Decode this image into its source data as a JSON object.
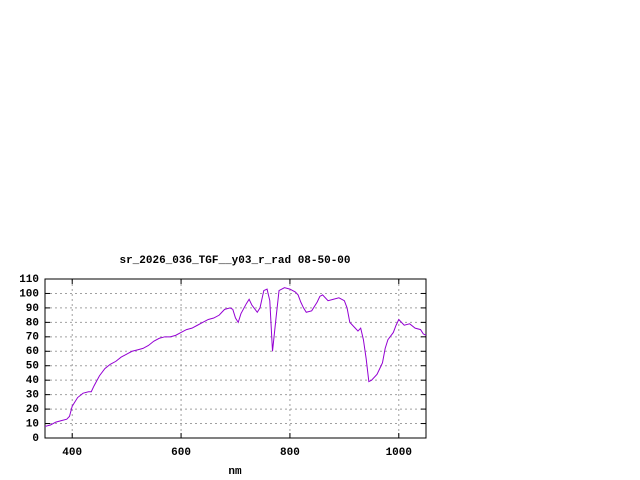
{
  "chart_data": {
    "type": "line",
    "title": "sr_2026_036_TGF__y03_r_rad 08-50-00",
    "x_label": "nm",
    "x": [
      350,
      360,
      370,
      380,
      390,
      395,
      400,
      410,
      420,
      430,
      435,
      440,
      450,
      460,
      470,
      480,
      490,
      500,
      510,
      520,
      530,
      540,
      550,
      560,
      570,
      580,
      590,
      600,
      610,
      620,
      630,
      640,
      650,
      660,
      670,
      680,
      690,
      695,
      700,
      705,
      710,
      720,
      725,
      730,
      740,
      745,
      752,
      758,
      763,
      768,
      775,
      780,
      790,
      800,
      810,
      815,
      820,
      825,
      830,
      840,
      850,
      855,
      860,
      870,
      880,
      890,
      900,
      905,
      910,
      920,
      925,
      930,
      935,
      940,
      945,
      950,
      960,
      965,
      970,
      975,
      980,
      990,
      995,
      1000,
      1005,
      1010,
      1020,
      1030,
      1040,
      1045,
      1050
    ],
    "series": [
      {
        "name": "sr_2026_036_TGF__y03_r_rad",
        "color": "#9400d3",
        "values": [
          8,
          9,
          11,
          12,
          13,
          15,
          22,
          28,
          31,
          32,
          32,
          36,
          43,
          48,
          51,
          53,
          56,
          58,
          60,
          61,
          62,
          64,
          67,
          69,
          70,
          70,
          71,
          73,
          75,
          76,
          78,
          80,
          82,
          83,
          85,
          89,
          90,
          89,
          83,
          80,
          86,
          93,
          96,
          92,
          87,
          90,
          102,
          103,
          95,
          60,
          85,
          102,
          104,
          103,
          101,
          99,
          94,
          90,
          87,
          88,
          94,
          98,
          99,
          95,
          96,
          97,
          95,
          90,
          80,
          76,
          74,
          76,
          68,
          55,
          39,
          40,
          44,
          48,
          52,
          62,
          68,
          73,
          78,
          82,
          80,
          78,
          79,
          76,
          75,
          72,
          71
        ]
      }
    ],
    "xlim": [
      350,
      1050
    ],
    "ylim": [
      0,
      110
    ],
    "xticks": [
      400,
      600,
      800,
      1000
    ],
    "yticks": [
      0,
      10,
      20,
      30,
      40,
      50,
      60,
      70,
      80,
      90,
      100,
      110
    ],
    "grid": true
  }
}
